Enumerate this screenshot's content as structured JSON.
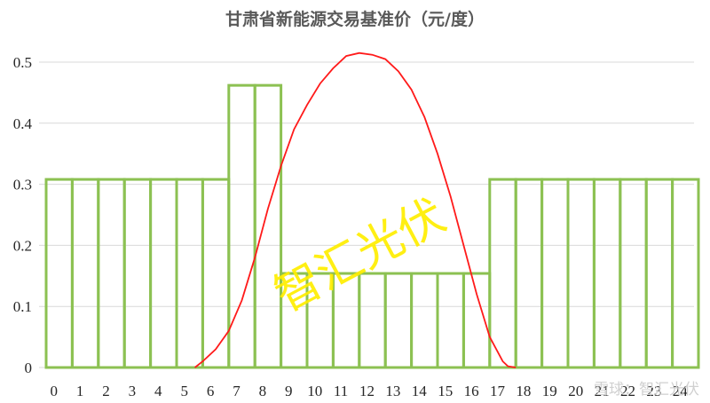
{
  "chart_data": {
    "type": "bar",
    "title": "甘肃省新能源交易基准价（元/度）",
    "xlabel": "",
    "ylabel": "",
    "ylim": [
      0,
      0.5
    ],
    "yticks": [
      "0",
      "0.1",
      "0.2",
      "0.3",
      "0.4",
      "0.5"
    ],
    "categories": [
      "0",
      "1",
      "2",
      "3",
      "4",
      "5",
      "6",
      "7",
      "8",
      "9",
      "10",
      "11",
      "12",
      "13",
      "14",
      "15",
      "16",
      "17",
      "18",
      "19",
      "20",
      "21",
      "22",
      "23",
      "24"
    ],
    "values": [
      0.308,
      0.308,
      0.308,
      0.308,
      0.308,
      0.308,
      0.308,
      0.462,
      0.462,
      0.154,
      0.154,
      0.154,
      0.154,
      0.154,
      0.154,
      0.154,
      0.154,
      0.308,
      0.308,
      0.308,
      0.308,
      0.308,
      0.308,
      0.308,
      0.308
    ],
    "grid": true,
    "legend": "none",
    "colors": {
      "bars": "#8cc152",
      "curve": "#ff1a1a",
      "watermark": "#ffee00"
    },
    "overlay_curve": {
      "x": [
        5.7,
        6.0,
        6.5,
        7.0,
        7.5,
        8.0,
        8.5,
        9.0,
        9.5,
        10.0,
        10.5,
        11.0,
        11.5,
        12.0,
        12.5,
        13.0,
        13.5,
        14.0,
        14.5,
        15.0,
        15.5,
        16.0,
        16.5,
        17.0,
        17.5,
        17.7,
        18.0
      ],
      "y": [
        0.0,
        0.01,
        0.03,
        0.06,
        0.11,
        0.18,
        0.26,
        0.33,
        0.39,
        0.43,
        0.465,
        0.49,
        0.51,
        0.515,
        0.512,
        0.505,
        0.485,
        0.455,
        0.41,
        0.35,
        0.28,
        0.2,
        0.12,
        0.05,
        0.01,
        0.002,
        0.0
      ]
    }
  },
  "watermark": {
    "text": "智汇光伏",
    "credit": "雪球：智汇光伏"
  }
}
